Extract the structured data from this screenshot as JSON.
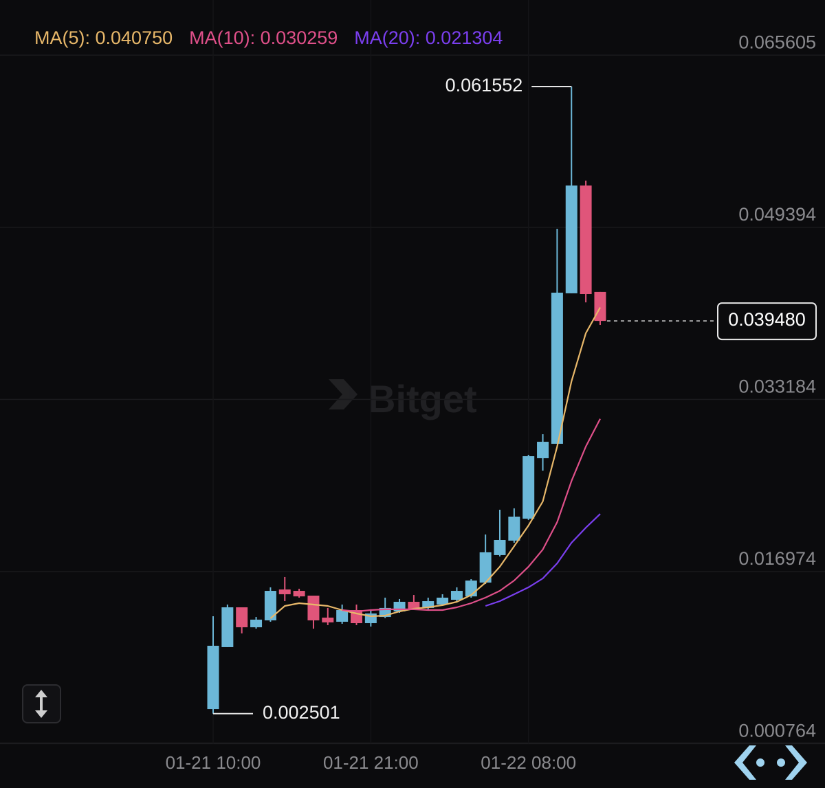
{
  "chart_data": {
    "type": "candlestick",
    "watermark": "Bitget",
    "categories": [
      "01-21 10:00",
      null,
      null,
      null,
      null,
      null,
      null,
      null,
      null,
      null,
      null,
      "01-21 21:00",
      null,
      null,
      null,
      null,
      null,
      null,
      null,
      null,
      null,
      null,
      "01-22 08:00",
      null,
      null,
      null,
      null,
      null
    ],
    "open": [
      0.00293,
      0.00876,
      0.01251,
      0.01063,
      0.01128,
      0.01419,
      0.01406,
      0.01361,
      0.01154,
      0.01115,
      0.01225,
      0.01102,
      0.0116,
      0.01212,
      0.01303,
      0.01245,
      0.01277,
      0.01322,
      0.01354,
      0.01484,
      0.01743,
      0.01879,
      0.02086,
      0.02655,
      0.02791,
      0.04208,
      0.05223,
      0.04221
    ],
    "high": [
      0.01167,
      0.01277,
      0.01251,
      0.0116,
      0.01439,
      0.01536,
      0.01426,
      0.01361,
      0.01245,
      0.01277,
      0.01277,
      0.01232,
      0.01342,
      0.01329,
      0.01367,
      0.01342,
      0.01374,
      0.01439,
      0.01516,
      0.01937,
      0.0217,
      0.02183,
      0.02687,
      0.02881,
      0.04816,
      0.061552,
      0.05269,
      0.04221
    ],
    "low": [
      0.002501,
      0.00876,
      0.01005,
      0.0105,
      0.01115,
      0.01309,
      0.01342,
      0.0105,
      0.01083,
      0.01096,
      0.01083,
      0.0107,
      0.0115,
      0.01199,
      0.01225,
      0.01232,
      0.01264,
      0.01309,
      0.01342,
      0.01471,
      0.0173,
      0.01859,
      0.02073,
      0.02538,
      0.02791,
      0.04208,
      0.04123,
      0.0391
    ],
    "close": [
      0.00889,
      0.01251,
      0.01063,
      0.01135,
      0.01406,
      0.01374,
      0.01354,
      0.01128,
      0.01109,
      0.01225,
      0.01102,
      0.01193,
      0.01245,
      0.01303,
      0.01238,
      0.01309,
      0.01342,
      0.01406,
      0.01503,
      0.01769,
      0.01885,
      0.02105,
      0.02674,
      0.0281,
      0.04214,
      0.05223,
      0.04201,
      0.03948
    ],
    "up_color": "#6cb8d8",
    "down_color": "#e0557a",
    "series": [
      {
        "name": "MA(5): 0.040750",
        "color": "#e8b86a",
        "values": [
          null,
          null,
          null,
          null,
          0.01147,
          0.01264,
          0.0129,
          0.01277,
          0.01264,
          0.01225,
          0.01193,
          0.01167,
          0.01173,
          0.01212,
          0.01238,
          0.01251,
          0.01271,
          0.01303,
          0.01367,
          0.01484,
          0.01633,
          0.01827,
          0.02021,
          0.02247,
          0.02765,
          0.0338,
          0.03832,
          0.04075
        ]
      },
      {
        "name": "MA(10): 0.030259",
        "color": "#e0508a",
        "values": [
          null,
          null,
          null,
          null,
          null,
          null,
          null,
          null,
          null,
          0.01225,
          0.01212,
          0.01225,
          0.01232,
          0.01232,
          0.01232,
          0.01225,
          0.01225,
          0.01251,
          0.0129,
          0.01342,
          0.01406,
          0.01503,
          0.01633,
          0.01795,
          0.02053,
          0.02441,
          0.02765,
          0.030259
        ]
      },
      {
        "name": "MA(20): 0.021304",
        "color": "#7b3ff0",
        "values": [
          null,
          null,
          null,
          null,
          null,
          null,
          null,
          null,
          null,
          null,
          null,
          null,
          null,
          null,
          null,
          null,
          null,
          null,
          null,
          0.01264,
          0.01309,
          0.01374,
          0.01439,
          0.01523,
          0.01665,
          0.01859,
          0.02001,
          0.021304
        ]
      }
    ],
    "last_price": {
      "value": 0.03948,
      "label": "0.039480"
    },
    "ylim": [
      -0.0003,
      0.0697
    ],
    "yticks": [
      0.000764,
      0.016974,
      0.033184,
      0.049394,
      0.065605
    ],
    "grid": true
  }
}
